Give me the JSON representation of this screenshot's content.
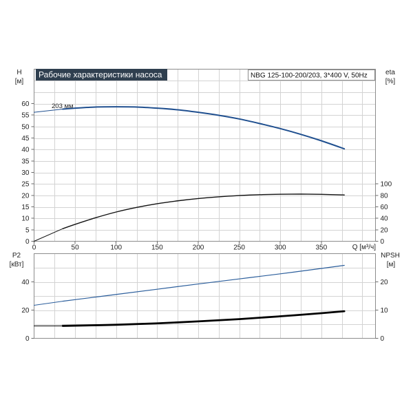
{
  "chart_data": [
    {
      "type": "line",
      "title": "Рабочие характеристики насоса",
      "subtitle": "NBG 125-100-200/203, 3*400 V, 50Hz",
      "xlabel": "Q [м³/ч]",
      "xlim": [
        0,
        416
      ],
      "xticks": [
        0,
        50,
        100,
        150,
        200,
        250,
        300,
        350
      ],
      "ylabel": "H",
      "yunit": "[м]",
      "ylim": [
        0,
        75
      ],
      "yticks": [
        0,
        5,
        10,
        15,
        20,
        25,
        30,
        35,
        40,
        45,
        50,
        55,
        60
      ],
      "y2label": "eta",
      "y2unit": "[%]",
      "y2lim": [
        0,
        300
      ],
      "y2ticks": [
        0,
        20,
        40,
        60,
        80,
        100
      ],
      "grid": true,
      "x_grid_step": 25,
      "y_grid_step": 5,
      "series": [
        {
          "name": "203 мм",
          "y2": false,
          "color": "#1f4f8f",
          "x": [
            0,
            35,
            50,
            75,
            100,
            125,
            150,
            175,
            200,
            225,
            250,
            275,
            300,
            325,
            350,
            378
          ],
          "y": [
            56.2,
            57.6,
            58.0,
            58.5,
            58.6,
            58.5,
            58.0,
            57.3,
            56.2,
            54.9,
            53.3,
            51.3,
            49.1,
            46.6,
            43.8,
            40.3
          ]
        },
        {
          "y2": true,
          "color": "#111111",
          "x": [
            0,
            35,
            50,
            75,
            100,
            125,
            150,
            175,
            200,
            225,
            250,
            275,
            300,
            325,
            350,
            378
          ],
          "y": [
            0,
            22,
            29.5,
            41,
            51,
            59,
            65.5,
            70.5,
            74.5,
            77.5,
            79.7,
            81.2,
            82.0,
            82.2,
            81.8,
            80.8
          ]
        }
      ]
    },
    {
      "type": "line",
      "xlim": [
        0,
        416
      ],
      "ylabel": "P2",
      "yunit": "[кВт]",
      "ylim": [
        0,
        60
      ],
      "yticks": [
        0,
        20,
        40
      ],
      "y2label": "NPSH",
      "y2unit": "[м]",
      "y2lim": [
        0,
        30
      ],
      "y2ticks": [
        0,
        10,
        20
      ],
      "grid": true,
      "x_grid_step": 25,
      "y_grid_step": 10,
      "series": [
        {
          "y2": false,
          "color": "#2a5d9b",
          "x": [
            0,
            35,
            50,
            100,
            150,
            200,
            250,
            300,
            350,
            378
          ],
          "y": [
            23.4,
            26.3,
            27.4,
            31.1,
            34.8,
            38.5,
            42.1,
            45.7,
            49.5,
            51.7
          ]
        },
        {
          "y2": true,
          "color": "#000000",
          "x": [
            0,
            35,
            50,
            100,
            150,
            200,
            250,
            300,
            350,
            378
          ],
          "y": [
            4.4,
            4.4,
            4.5,
            4.8,
            5.3,
            6.0,
            6.8,
            7.8,
            8.9,
            9.6
          ]
        }
      ]
    }
  ]
}
